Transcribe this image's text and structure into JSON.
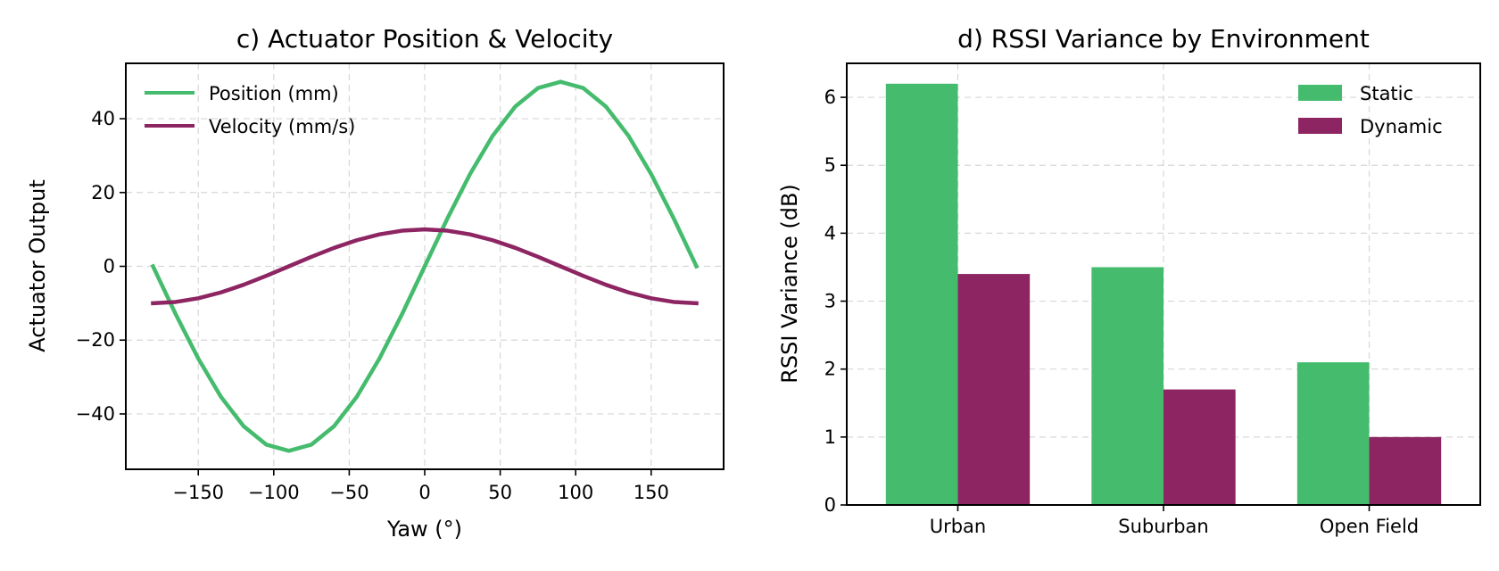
{
  "chart_data": [
    {
      "type": "line",
      "title": "c) Actuator Position & Velocity",
      "xlabel": "Yaw (°)",
      "ylabel": "Actuator Output",
      "xlim": [
        -198,
        198
      ],
      "ylim": [
        -55,
        55
      ],
      "xticks": [
        -150,
        -100,
        -50,
        0,
        50,
        100,
        150
      ],
      "xtick_labels": [
        "−150",
        "−100",
        "−50",
        "0",
        "50",
        "100",
        "150"
      ],
      "yticks": [
        -40,
        -20,
        0,
        20,
        40
      ],
      "ytick_labels": [
        "−40",
        "−20",
        "0",
        "20",
        "40"
      ],
      "grid": true,
      "legend_position": "top-left",
      "series": [
        {
          "name": "Position (mm)",
          "color": "#45bc6d",
          "x": [
            -180,
            -165,
            -150,
            -135,
            -120,
            -105,
            -90,
            -75,
            -60,
            -45,
            -30,
            -15,
            0,
            15,
            30,
            45,
            60,
            75,
            90,
            105,
            120,
            135,
            150,
            165,
            180
          ],
          "y": [
            0,
            -12.94,
            -25,
            -35.36,
            -43.3,
            -48.3,
            -50,
            -48.3,
            -43.3,
            -35.36,
            -25,
            -12.94,
            0,
            12.94,
            25,
            35.36,
            43.3,
            48.3,
            50,
            48.3,
            43.3,
            35.36,
            25,
            12.94,
            0
          ]
        },
        {
          "name": "Velocity (mm/s)",
          "color": "#8e2563",
          "x": [
            -180,
            -165,
            -150,
            -135,
            -120,
            -105,
            -90,
            -75,
            -60,
            -45,
            -30,
            -15,
            0,
            15,
            30,
            45,
            60,
            75,
            90,
            105,
            120,
            135,
            150,
            165,
            180
          ],
          "y": [
            -10,
            -9.66,
            -8.66,
            -7.07,
            -5,
            -2.59,
            0,
            2.59,
            5,
            7.07,
            8.66,
            9.66,
            10,
            9.66,
            8.66,
            7.07,
            5,
            2.59,
            0,
            -2.59,
            -5,
            -7.07,
            -8.66,
            -9.66,
            -10
          ]
        }
      ]
    },
    {
      "type": "bar",
      "title": "d) RSSI Variance by Environment",
      "xlabel": "",
      "ylabel": "RSSI Variance (dB)",
      "categories": [
        "Urban",
        "Suburban",
        "Open Field"
      ],
      "ylim": [
        0,
        6.5
      ],
      "yticks": [
        0,
        1,
        2,
        3,
        4,
        5,
        6
      ],
      "ytick_labels": [
        "0",
        "1",
        "2",
        "3",
        "4",
        "5",
        "6"
      ],
      "grid": true,
      "legend_position": "top-right",
      "series": [
        {
          "name": "Static",
          "color": "#45bc6d",
          "values": [
            6.2,
            3.5,
            2.1
          ]
        },
        {
          "name": "Dynamic",
          "color": "#8e2563",
          "values": [
            3.4,
            1.7,
            1.0
          ]
        }
      ]
    }
  ]
}
